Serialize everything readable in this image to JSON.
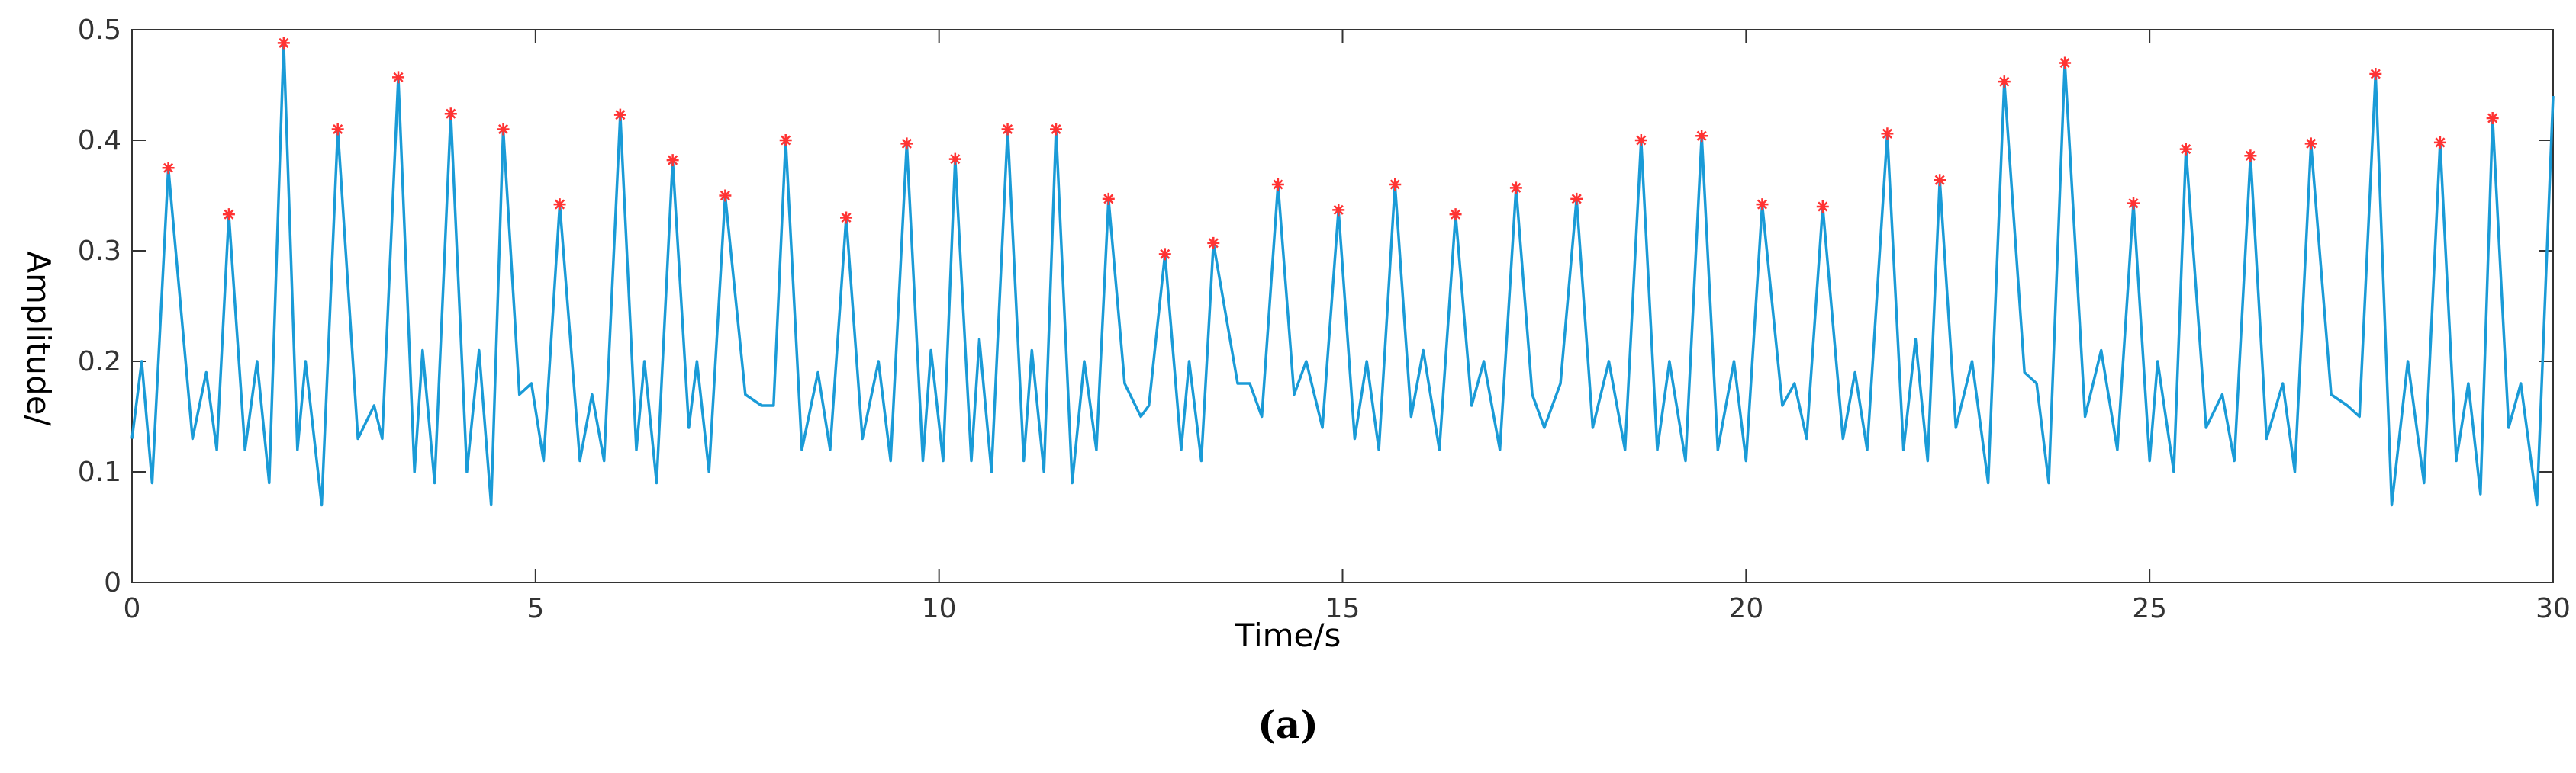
{
  "chart_data": {
    "type": "line",
    "ylabel": "Amplitude/",
    "xlabel": "Time/s",
    "caption": "(a)",
    "xlim": [
      0,
      30
    ],
    "ylim": [
      0,
      0.5
    ],
    "xticks": [
      0,
      5,
      10,
      15,
      20,
      25,
      30
    ],
    "yticks": [
      0,
      0.1,
      0.2,
      0.3,
      0.4,
      0.5
    ],
    "series": [
      {
        "type": "line",
        "color": "#1a9bd7",
        "x": [
          0,
          0.12,
          0.25,
          0.45,
          0.75,
          0.92,
          1.05,
          1.2,
          1.4,
          1.55,
          1.7,
          1.88,
          2.05,
          2.15,
          2.35,
          2.55,
          2.8,
          3.0,
          3.1,
          3.3,
          3.5,
          3.6,
          3.75,
          3.95,
          4.15,
          4.3,
          4.45,
          4.6,
          4.8,
          4.95,
          5.1,
          5.3,
          5.55,
          5.7,
          5.85,
          6.05,
          6.25,
          6.35,
          6.5,
          6.7,
          6.9,
          7.0,
          7.15,
          7.35,
          7.6,
          7.8,
          7.95,
          8.1,
          8.3,
          8.5,
          8.65,
          8.85,
          9.05,
          9.25,
          9.4,
          9.6,
          9.8,
          9.9,
          10.05,
          10.2,
          10.4,
          10.5,
          10.65,
          10.85,
          11.05,
          11.15,
          11.3,
          11.45,
          11.65,
          11.8,
          11.95,
          12.1,
          12.3,
          12.5,
          12.6,
          12.8,
          13.0,
          13.1,
          13.25,
          13.4,
          13.7,
          13.85,
          14.0,
          14.2,
          14.4,
          14.55,
          14.75,
          14.95,
          15.15,
          15.3,
          15.45,
          15.65,
          15.85,
          16.0,
          16.2,
          16.4,
          16.6,
          16.75,
          16.95,
          17.15,
          17.35,
          17.5,
          17.7,
          17.9,
          18.1,
          18.3,
          18.5,
          18.7,
          18.9,
          19.05,
          19.25,
          19.45,
          19.65,
          19.85,
          20.0,
          20.2,
          20.45,
          20.6,
          20.75,
          20.95,
          21.2,
          21.35,
          21.5,
          21.75,
          21.95,
          22.1,
          22.25,
          22.4,
          22.6,
          22.8,
          23.0,
          23.2,
          23.45,
          23.6,
          23.75,
          23.95,
          24.2,
          24.4,
          24.6,
          24.8,
          25.0,
          25.1,
          25.3,
          25.45,
          25.7,
          25.9,
          26.05,
          26.25,
          26.45,
          26.65,
          26.8,
          27.0,
          27.25,
          27.45,
          27.6,
          27.8,
          28.0,
          28.2,
          28.4,
          28.6,
          28.8,
          28.95,
          29.1,
          29.25,
          29.45,
          29.6,
          29.8,
          30
        ],
        "values": [
          0.13,
          0.2,
          0.09,
          0.375,
          0.13,
          0.19,
          0.12,
          0.333,
          0.12,
          0.2,
          0.09,
          0.488,
          0.12,
          0.2,
          0.07,
          0.41,
          0.13,
          0.16,
          0.13,
          0.457,
          0.1,
          0.21,
          0.09,
          0.424,
          0.1,
          0.21,
          0.07,
          0.41,
          0.17,
          0.18,
          0.11,
          0.342,
          0.11,
          0.17,
          0.11,
          0.423,
          0.12,
          0.2,
          0.09,
          0.382,
          0.14,
          0.2,
          0.1,
          0.35,
          0.17,
          0.16,
          0.16,
          0.4,
          0.12,
          0.19,
          0.12,
          0.33,
          0.13,
          0.2,
          0.11,
          0.397,
          0.11,
          0.21,
          0.11,
          0.383,
          0.11,
          0.22,
          0.1,
          0.41,
          0.11,
          0.21,
          0.1,
          0.41,
          0.09,
          0.2,
          0.12,
          0.347,
          0.18,
          0.15,
          0.16,
          0.297,
          0.12,
          0.2,
          0.11,
          0.307,
          0.18,
          0.18,
          0.15,
          0.36,
          0.17,
          0.2,
          0.14,
          0.337,
          0.13,
          0.2,
          0.12,
          0.36,
          0.15,
          0.21,
          0.12,
          0.333,
          0.16,
          0.2,
          0.12,
          0.357,
          0.17,
          0.14,
          0.18,
          0.347,
          0.14,
          0.2,
          0.12,
          0.4,
          0.12,
          0.2,
          0.11,
          0.404,
          0.12,
          0.2,
          0.11,
          0.342,
          0.16,
          0.18,
          0.13,
          0.34,
          0.13,
          0.19,
          0.12,
          0.406,
          0.12,
          0.22,
          0.11,
          0.364,
          0.14,
          0.2,
          0.09,
          0.453,
          0.19,
          0.18,
          0.09,
          0.47,
          0.15,
          0.21,
          0.12,
          0.343,
          0.11,
          0.2,
          0.1,
          0.392,
          0.14,
          0.17,
          0.11,
          0.386,
          0.13,
          0.18,
          0.1,
          0.397,
          0.17,
          0.16,
          0.15,
          0.46,
          0.07,
          0.2,
          0.09,
          0.398,
          0.11,
          0.18,
          0.08,
          0.42,
          0.14,
          0.18,
          0.07,
          0.44
        ]
      },
      {
        "type": "scatter",
        "color": "#ff3333",
        "marker": "*",
        "x": [
          0.45,
          1.2,
          1.88,
          2.55,
          3.3,
          3.95,
          4.6,
          5.3,
          6.05,
          6.7,
          7.35,
          8.1,
          8.85,
          9.6,
          10.2,
          10.85,
          11.45,
          12.1,
          12.8,
          13.4,
          14.2,
          14.95,
          15.65,
          16.4,
          17.15,
          17.9,
          18.7,
          19.45,
          20.2,
          20.95,
          21.75,
          22.4,
          23.2,
          23.95,
          24.8,
          25.45,
          26.25,
          27.0,
          27.8,
          28.6,
          29.25
        ],
        "values": [
          0.375,
          0.333,
          0.488,
          0.41,
          0.457,
          0.424,
          0.41,
          0.342,
          0.423,
          0.382,
          0.35,
          0.4,
          0.33,
          0.397,
          0.383,
          0.41,
          0.41,
          0.347,
          0.297,
          0.307,
          0.36,
          0.337,
          0.36,
          0.333,
          0.357,
          0.347,
          0.4,
          0.404,
          0.342,
          0.34,
          0.406,
          0.364,
          0.453,
          0.47,
          0.343,
          0.392,
          0.386,
          0.397,
          0.46,
          0.398,
          0.42
        ]
      }
    ]
  }
}
